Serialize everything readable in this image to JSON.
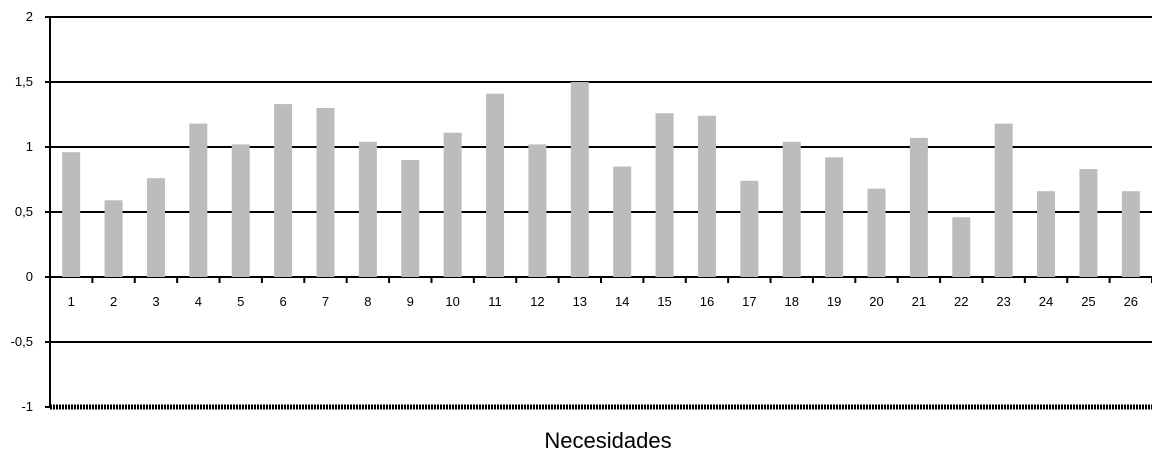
{
  "chart_data": {
    "type": "bar",
    "xlabel": "Necesidades",
    "ylabel": "",
    "ylim": [
      -1,
      2
    ],
    "yticks": [
      -1,
      -0.5,
      0,
      0.5,
      1,
      1.5,
      2
    ],
    "ytick_labels": [
      "-1",
      "-0,5",
      "0",
      "0,5",
      "1",
      "1,5",
      "2"
    ],
    "categories": [
      "1",
      "2",
      "3",
      "4",
      "5",
      "6",
      "7",
      "8",
      "9",
      "10",
      "11",
      "12",
      "13",
      "14",
      "15",
      "16",
      "17",
      "18",
      "19",
      "20",
      "21",
      "22",
      "23",
      "24",
      "25",
      "26"
    ],
    "values": [
      0.96,
      0.59,
      0.76,
      1.18,
      1.02,
      1.33,
      1.3,
      1.04,
      0.9,
      1.11,
      1.41,
      1.02,
      1.5,
      0.85,
      1.26,
      1.24,
      0.74,
      1.04,
      0.92,
      0.68,
      1.07,
      0.46,
      1.18,
      0.66,
      0.83,
      0.66
    ],
    "grid": true,
    "legend": "none",
    "colors": {
      "bar": "#bcbcbc",
      "grid": "#000000",
      "axis": "#000000"
    }
  }
}
